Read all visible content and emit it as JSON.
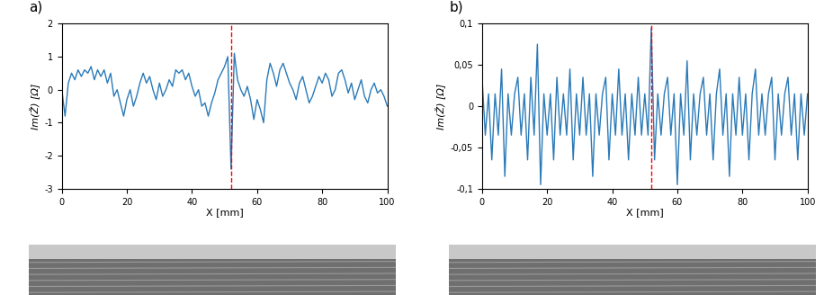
{
  "chart_data": [
    {
      "type": "line",
      "title": "a)",
      "x_label": "X [mm]",
      "y_label": "Im(Ž) [Ω]",
      "color": "#2a7ab8",
      "xlim": [
        0,
        100
      ],
      "xticks": [
        0,
        20,
        40,
        60,
        80,
        100
      ],
      "ylim": [
        -3,
        2
      ],
      "yticks": [
        -3,
        -2,
        -1,
        0,
        1,
        2
      ],
      "vline": 52,
      "x": [
        0,
        1,
        2,
        3,
        4,
        5,
        6,
        7,
        8,
        9,
        10,
        11,
        12,
        13,
        14,
        15,
        16,
        17,
        18,
        19,
        20,
        21,
        22,
        23,
        24,
        25,
        26,
        27,
        28,
        29,
        30,
        31,
        32,
        33,
        34,
        35,
        36,
        37,
        38,
        39,
        40,
        41,
        42,
        43,
        44,
        45,
        46,
        47,
        48,
        49,
        50,
        51,
        52,
        53,
        54,
        55,
        56,
        57,
        58,
        59,
        60,
        61,
        62,
        63,
        64,
        65,
        66,
        67,
        68,
        69,
        70,
        71,
        72,
        73,
        74,
        75,
        76,
        77,
        78,
        79,
        80,
        81,
        82,
        83,
        84,
        85,
        86,
        87,
        88,
        89,
        90,
        91,
        92,
        93,
        94,
        95,
        96,
        97,
        98,
        99,
        100
      ],
      "values": [
        0.0,
        -0.8,
        0.2,
        0.5,
        0.3,
        0.6,
        0.4,
        0.6,
        0.5,
        0.7,
        0.3,
        0.6,
        0.4,
        0.6,
        0.2,
        0.5,
        -0.2,
        0.0,
        -0.4,
        -0.8,
        -0.3,
        0.0,
        -0.5,
        -0.2,
        0.2,
        0.5,
        0.2,
        0.4,
        0.0,
        -0.3,
        0.2,
        -0.2,
        0.0,
        0.3,
        0.1,
        0.6,
        0.5,
        0.6,
        0.3,
        0.5,
        0.1,
        -0.2,
        0.0,
        -0.5,
        -0.4,
        -0.8,
        -0.4,
        -0.1,
        0.3,
        0.5,
        0.7,
        1.0,
        -2.4,
        1.1,
        0.3,
        0.0,
        -0.2,
        0.1,
        -0.3,
        -0.9,
        -0.3,
        -0.6,
        -1.0,
        0.3,
        0.8,
        0.5,
        0.1,
        0.6,
        0.8,
        0.5,
        0.2,
        0.0,
        -0.3,
        0.2,
        0.4,
        0.0,
        -0.4,
        -0.2,
        0.1,
        0.4,
        0.2,
        0.5,
        0.3,
        -0.2,
        0.0,
        0.5,
        0.6,
        0.3,
        -0.1,
        0.2,
        -0.3,
        0.0,
        0.3,
        -0.2,
        -0.4,
        0.0,
        0.2,
        -0.1,
        0.0,
        -0.2,
        -0.5
      ]
    },
    {
      "type": "line",
      "title": "b)",
      "x_label": "X [mm]",
      "y_label": "Im(Ž) [Ω]",
      "color": "#2a7ab8",
      "xlim": [
        0,
        100
      ],
      "xticks": [
        0,
        20,
        40,
        60,
        80,
        100
      ],
      "ylim": [
        -0.1,
        0.1
      ],
      "yticks": [
        {
          "value": -0.1,
          "label": "-0,1"
        },
        {
          "value": -0.05,
          "label": "-0,05"
        },
        0,
        {
          "value": 0.05,
          "label": "0,05"
        },
        {
          "value": 0.1,
          "label": "0,1"
        }
      ],
      "vline": 52,
      "x": [
        0,
        1,
        2,
        3,
        4,
        5,
        6,
        7,
        8,
        9,
        10,
        11,
        12,
        13,
        14,
        15,
        16,
        17,
        18,
        19,
        20,
        21,
        22,
        23,
        24,
        25,
        26,
        27,
        28,
        29,
        30,
        31,
        32,
        33,
        34,
        35,
        36,
        37,
        38,
        39,
        40,
        41,
        42,
        43,
        44,
        45,
        46,
        47,
        48,
        49,
        50,
        51,
        52,
        53,
        54,
        55,
        56,
        57,
        58,
        59,
        60,
        61,
        62,
        63,
        64,
        65,
        66,
        67,
        68,
        69,
        70,
        71,
        72,
        73,
        74,
        75,
        76,
        77,
        78,
        79,
        80,
        81,
        82,
        83,
        84,
        85,
        86,
        87,
        88,
        89,
        90,
        91,
        92,
        93,
        94,
        95,
        96,
        97,
        98,
        99,
        100
      ],
      "values": [
        0.035,
        -0.035,
        0.015,
        -0.065,
        0.015,
        -0.035,
        0.045,
        -0.085,
        0.015,
        -0.035,
        0.015,
        0.035,
        -0.035,
        0.015,
        -0.065,
        0.035,
        -0.035,
        0.075,
        -0.095,
        0.015,
        -0.035,
        0.015,
        -0.065,
        0.035,
        -0.035,
        0.015,
        -0.035,
        0.045,
        -0.065,
        0.015,
        -0.035,
        0.035,
        -0.035,
        0.015,
        -0.085,
        0.015,
        -0.035,
        0.015,
        0.035,
        -0.065,
        0.015,
        -0.035,
        0.045,
        -0.035,
        0.015,
        -0.065,
        0.015,
        -0.035,
        0.035,
        -0.035,
        0.015,
        -0.035,
        0.095,
        -0.065,
        0.015,
        -0.035,
        0.015,
        0.035,
        -0.035,
        0.015,
        -0.095,
        0.015,
        -0.035,
        0.055,
        -0.065,
        0.015,
        -0.035,
        0.015,
        0.035,
        -0.035,
        0.015,
        -0.065,
        0.015,
        0.045,
        -0.035,
        0.015,
        -0.085,
        0.015,
        -0.035,
        0.035,
        -0.035,
        0.015,
        -0.065,
        0.015,
        0.045,
        -0.035,
        0.015,
        -0.035,
        0.015,
        0.035,
        -0.065,
        0.015,
        -0.035,
        0.015,
        0.035,
        -0.035,
        0.015,
        -0.065,
        0.015,
        -0.035,
        0.015
      ]
    }
  ]
}
